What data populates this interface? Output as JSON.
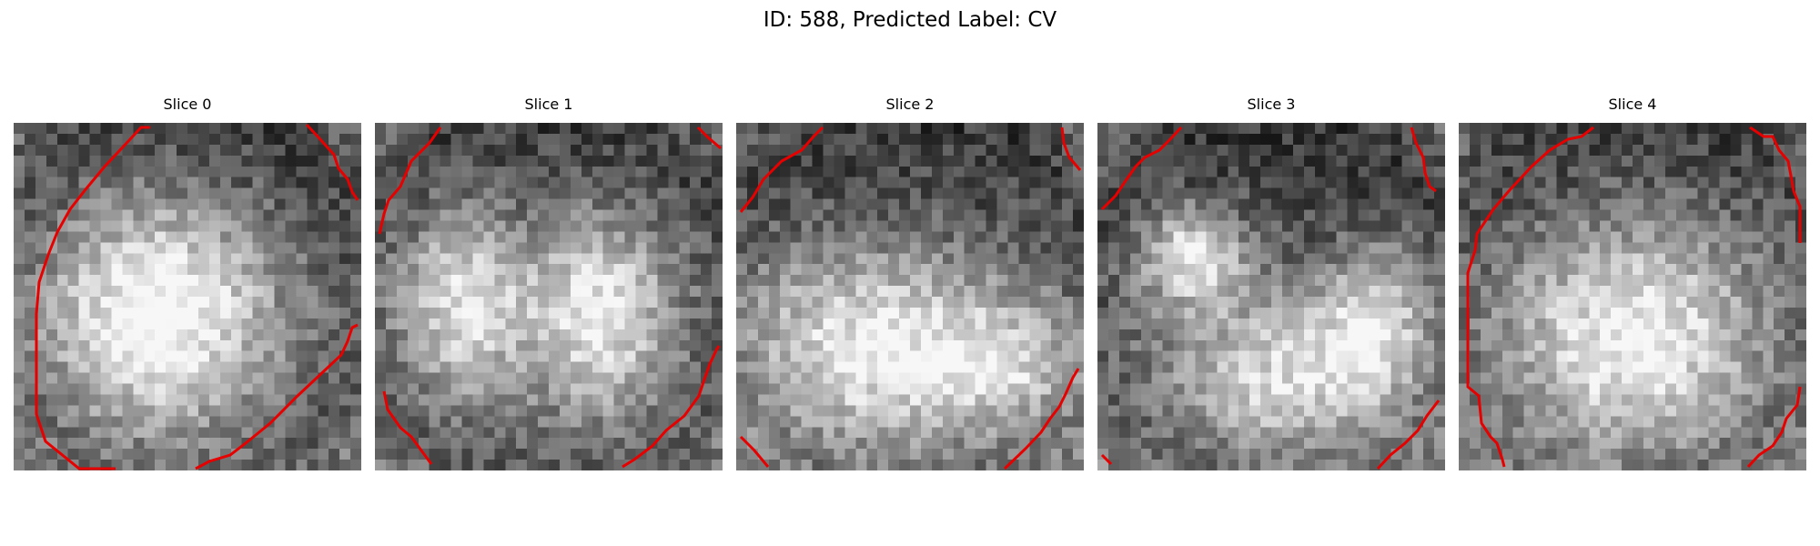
{
  "figure": {
    "title": "ID: 588, Predicted Label: CV"
  },
  "panels": [
    {
      "title": "Slice 0",
      "seed": 11,
      "bright": [
        [
          0.42,
          0.55,
          0.34,
          0.34,
          0.72
        ]
      ]
    },
    {
      "title": "Slice 1",
      "seed": 29,
      "bright": [
        [
          0.25,
          0.52,
          0.2,
          0.28,
          0.55
        ],
        [
          0.65,
          0.55,
          0.22,
          0.3,
          0.6
        ]
      ]
    },
    {
      "title": "Slice 2",
      "seed": 47,
      "bright": [
        [
          0.4,
          0.65,
          0.4,
          0.3,
          0.62
        ],
        [
          0.8,
          0.7,
          0.22,
          0.18,
          0.35
        ]
      ]
    },
    {
      "title": "Slice 3",
      "seed": 83,
      "bright": [
        [
          0.27,
          0.38,
          0.15,
          0.14,
          0.6
        ],
        [
          0.55,
          0.72,
          0.36,
          0.24,
          0.55
        ],
        [
          0.8,
          0.55,
          0.15,
          0.2,
          0.4
        ]
      ]
    },
    {
      "title": "Slice 4",
      "seed": 97,
      "bright": [
        [
          0.5,
          0.62,
          0.38,
          0.34,
          0.65
        ]
      ]
    }
  ],
  "colors": {
    "contour": "#e60000"
  }
}
